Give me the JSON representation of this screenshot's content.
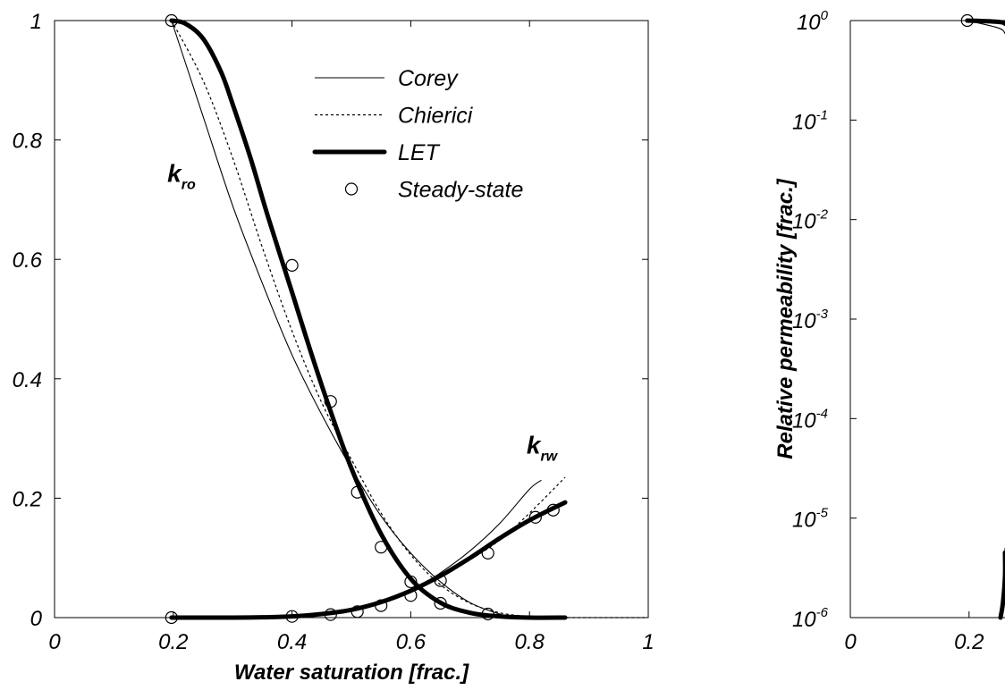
{
  "chart_data": [
    {
      "type": "line",
      "title": "",
      "xlabel": "Water saturation [frac.]",
      "ylabel": "",
      "xlim": [
        0,
        1
      ],
      "ylim": [
        0,
        1
      ],
      "xticks": [
        "0",
        "0.2",
        "0.4",
        "0.6",
        "0.8",
        "1"
      ],
      "yticks": [
        "0",
        "0.2",
        "0.4",
        "0.6",
        "0.8",
        "1"
      ],
      "grid": false,
      "legend": {
        "placement": "top-center",
        "entries": [
          {
            "label": "Corey",
            "style": "thin-solid"
          },
          {
            "label": "Chierici",
            "style": "dashed"
          },
          {
            "label": "LET",
            "style": "thick-solid"
          },
          {
            "label": "Steady-state",
            "style": "open-circle"
          }
        ]
      },
      "annotations": [
        {
          "base": "k",
          "sub": "ro",
          "x": 0.19,
          "y": 0.73
        },
        {
          "base": "k",
          "sub": "rw",
          "x": 0.795,
          "y": 0.275
        }
      ],
      "series": [
        {
          "name": "Corey",
          "curve": "kro",
          "style": "thin-solid",
          "x": [
            0.197,
            0.25,
            0.3,
            0.35,
            0.4,
            0.45,
            0.5,
            0.55,
            0.6,
            0.65,
            0.7,
            0.75,
            0.78
          ],
          "y": [
            1.0,
            0.84,
            0.69,
            0.56,
            0.44,
            0.34,
            0.25,
            0.17,
            0.108,
            0.06,
            0.025,
            0.006,
            0.0
          ]
        },
        {
          "name": "Chierici",
          "curve": "kro",
          "style": "dashed",
          "x": [
            0.197,
            0.25,
            0.3,
            0.35,
            0.4,
            0.45,
            0.5,
            0.55,
            0.6,
            0.65,
            0.7,
            0.75,
            0.8,
            0.85
          ],
          "y": [
            1.0,
            0.9,
            0.77,
            0.62,
            0.48,
            0.36,
            0.265,
            0.175,
            0.105,
            0.055,
            0.024,
            0.008,
            0.002,
            0.0
          ]
        },
        {
          "name": "LET",
          "curve": "kro",
          "style": "thick-solid",
          "x": [
            0.197,
            0.22,
            0.25,
            0.28,
            0.3,
            0.33,
            0.36,
            0.4,
            0.43,
            0.46,
            0.5,
            0.55,
            0.6,
            0.65,
            0.7,
            0.75,
            0.8,
            0.86
          ],
          "y": [
            1.0,
            0.995,
            0.97,
            0.915,
            0.86,
            0.77,
            0.67,
            0.545,
            0.45,
            0.36,
            0.25,
            0.14,
            0.065,
            0.025,
            0.008,
            0.002,
            0.0,
            0.0
          ]
        },
        {
          "name": "Corey",
          "curve": "krw",
          "style": "thin-solid",
          "x": [
            0.197,
            0.3,
            0.4,
            0.45,
            0.5,
            0.55,
            0.6,
            0.65,
            0.7,
            0.75,
            0.8,
            0.82
          ],
          "y": [
            0.0,
            0.0,
            0.0015,
            0.005,
            0.012,
            0.025,
            0.045,
            0.075,
            0.112,
            0.158,
            0.215,
            0.23
          ]
        },
        {
          "name": "Chierici",
          "curve": "krw",
          "style": "dashed",
          "x": [
            0.197,
            0.3,
            0.4,
            0.45,
            0.5,
            0.55,
            0.6,
            0.65,
            0.7,
            0.75,
            0.8,
            0.86
          ],
          "y": [
            0.0,
            0.0,
            0.002,
            0.006,
            0.014,
            0.027,
            0.045,
            0.068,
            0.097,
            0.13,
            0.175,
            0.235
          ]
        },
        {
          "name": "LET",
          "curve": "krw",
          "style": "thick-solid",
          "x": [
            0.197,
            0.3,
            0.35,
            0.4,
            0.45,
            0.5,
            0.55,
            0.6,
            0.65,
            0.7,
            0.75,
            0.8,
            0.86
          ],
          "y": [
            0.0,
            0.0,
            0.0005,
            0.002,
            0.006,
            0.013,
            0.026,
            0.045,
            0.07,
            0.1,
            0.133,
            0.163,
            0.193
          ]
        },
        {
          "name": "Steady-state",
          "curve": "kro",
          "style": "open-circle",
          "x": [
            0.197,
            0.4,
            0.465,
            0.51,
            0.55,
            0.6,
            0.65,
            0.73
          ],
          "y": [
            1.0,
            0.59,
            0.362,
            0.21,
            0.118,
            0.06,
            0.024,
            0.006
          ]
        },
        {
          "name": "Steady-state",
          "curve": "krw",
          "style": "open-circle",
          "x": [
            0.197,
            0.4,
            0.465,
            0.51,
            0.55,
            0.6,
            0.65,
            0.73,
            0.81,
            0.84
          ],
          "y": [
            0.0,
            0.002,
            0.005,
            0.01,
            0.02,
            0.037,
            0.062,
            0.108,
            0.168,
            0.18
          ]
        },
        {
          "name": "",
          "curve": "kro-tail",
          "style": "dashed",
          "x": [
            0.8,
            0.995
          ],
          "y": [
            0.0,
            0.0
          ]
        }
      ]
    },
    {
      "type": "line",
      "title": "",
      "xlabel": "",
      "ylabel": "Relative permeability [frac.]",
      "yscale": "log",
      "ylim": [
        1e-06,
        1
      ],
      "xlim": [
        0,
        1
      ],
      "xticks": [
        "0",
        "0.2"
      ],
      "yticks": [
        {
          "base": "10",
          "exp": "-6",
          "value": 1e-06
        },
        {
          "base": "10",
          "exp": "-5",
          "value": 1e-05
        },
        {
          "base": "10",
          "exp": "-4",
          "value": 0.0001
        },
        {
          "base": "10",
          "exp": "-3",
          "value": 0.001
        },
        {
          "base": "10",
          "exp": "-2",
          "value": 0.01
        },
        {
          "base": "10",
          "exp": "-1",
          "value": 0.1
        },
        {
          "base": "10",
          "exp": "0",
          "value": 1
        }
      ],
      "grid": false,
      "series": [
        {
          "name": "Steady-state",
          "curve": "kro",
          "style": "open-circle",
          "x": [
            0.197
          ],
          "y": [
            1.0
          ]
        },
        {
          "name": "LET",
          "curve": "kro",
          "style": "thick-solid",
          "x": [
            0.197,
            0.25,
            0.28
          ],
          "y": [
            1.0,
            0.97,
            0.93
          ]
        },
        {
          "name": "Corey",
          "curve": "kro",
          "style": "thin-solid",
          "x": [
            0.197,
            0.25,
            0.28
          ],
          "y": [
            1.0,
            0.84,
            0.74
          ]
        },
        {
          "name": "Corey",
          "curve": "krw",
          "style": "thin-solid",
          "x": [
            0.252,
            0.256,
            0.262,
            0.272
          ],
          "y": [
            1e-06,
            1.6e-06,
            2.8e-06,
            5e-06
          ]
        },
        {
          "name": "LET",
          "curve": "krw",
          "style": "thick-solid",
          "x": [
            0.253,
            0.257,
            0.266,
            0.276
          ],
          "y": [
            1e-06,
            1.4e-06,
            2.6e-06,
            4.5e-06
          ]
        }
      ]
    }
  ]
}
